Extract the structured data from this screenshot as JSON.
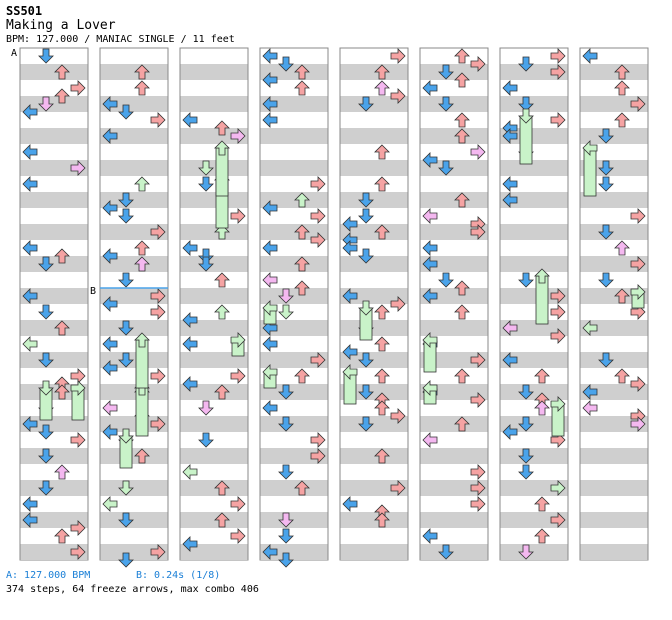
{
  "header": {
    "song_id": "SS501",
    "title": "Making a Lover",
    "info": "BPM: 127.000 / MANIAC SINGLE / 11 feet"
  },
  "markers": {
    "a": "A",
    "b": "B"
  },
  "footer": {
    "bpm_legend": "A: 127.000 BPM",
    "stop_legend": "B: 0.24s (1/8)",
    "stats": "374 steps, 64 freeze arrows, max combo 406"
  },
  "colors": {
    "blue": "#4aa3ea",
    "red": "#f5a3a3",
    "green": "#c9f3c9",
    "pink": "#f4b8f0",
    "yellow": "#f3f04a",
    "band": "#cfcfcf"
  },
  "icons": {
    "left": "left-arrow-icon",
    "down": "down-arrow-icon",
    "up": "up-arrow-icon",
    "right": "right-arrow-icon",
    "freeze": "freeze-arrow-icon"
  }
}
